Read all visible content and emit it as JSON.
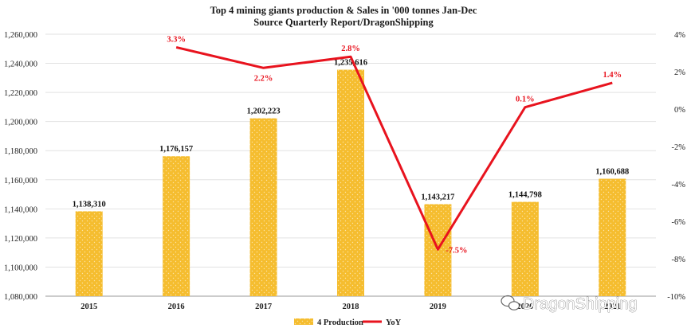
{
  "chart_data": {
    "type": "bar",
    "title": "Top 4 mining giants production & Sales in '000 tonnes Jan-Dec",
    "subtitle": "Source Quarterly Report/DragonShipping",
    "categories": [
      "2015",
      "2016",
      "2017",
      "2018",
      "2019",
      "2020",
      "2021"
    ],
    "series": [
      {
        "name": "4 Production",
        "type": "bar",
        "axis": "left",
        "color": "#f5bd2f",
        "values": [
          1138310,
          1176157,
          1202223,
          1235616,
          1143217,
          1144798,
          1160688
        ],
        "labels": [
          "1,138,310",
          "1,176,157",
          "1,202,223",
          "1,235,616",
          "1,143,217",
          "1,144,798",
          "1,160,688"
        ]
      },
      {
        "name": "YoY",
        "type": "line",
        "axis": "right",
        "color": "#e8131e",
        "values": [
          null,
          3.3,
          2.2,
          2.8,
          -7.5,
          0.1,
          1.4
        ],
        "labels": [
          "",
          "3.3%",
          "2.2%",
          "2.8%",
          "-7.5%",
          "0.1%",
          "1.4%"
        ]
      }
    ],
    "y_left": {
      "lim": [
        1080000,
        1260000
      ],
      "ticks": [
        "1,080,000",
        "1,100,000",
        "1,120,000",
        "1,140,000",
        "1,160,000",
        "1,180,000",
        "1,200,000",
        "1,220,000",
        "1,240,000",
        "1,260,000"
      ]
    },
    "y_right": {
      "lim": [
        -10,
        4
      ],
      "ticks": [
        "-10%",
        "-8%",
        "-6%",
        "-4%",
        "-2%",
        "0%",
        "2%",
        "4%"
      ]
    },
    "grid": true,
    "legend": "bottom-center",
    "watermark": "DragonShipping"
  }
}
